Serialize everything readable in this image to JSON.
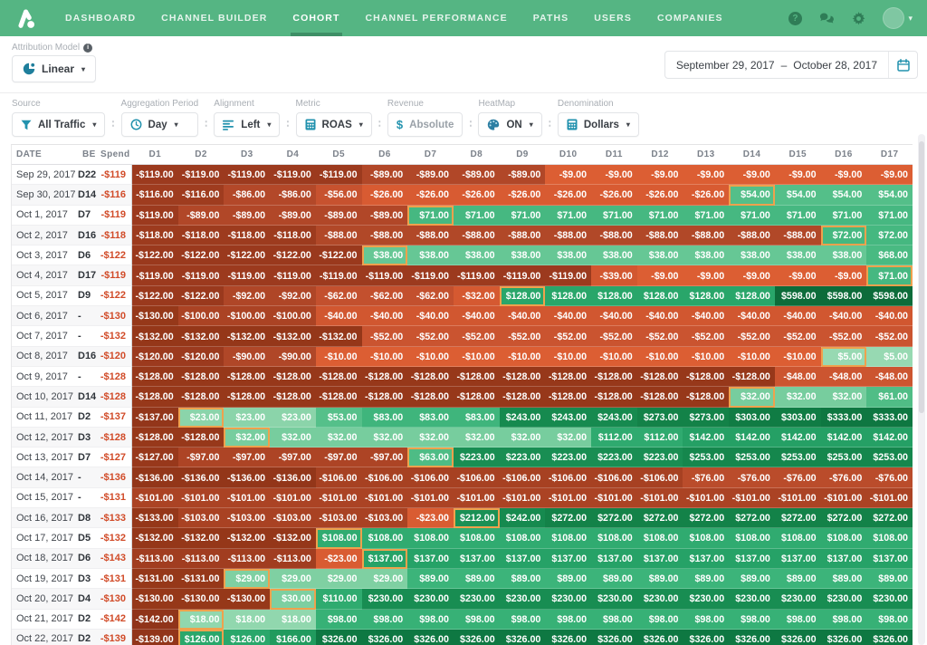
{
  "nav": {
    "items": [
      {
        "label": "DASHBOARD",
        "active": false
      },
      {
        "label": "CHANNEL BUILDER",
        "active": false
      },
      {
        "label": "COHORT",
        "active": true
      },
      {
        "label": "CHANNEL PERFORMANCE",
        "active": false
      },
      {
        "label": "PATHS",
        "active": false
      },
      {
        "label": "USERS",
        "active": false
      },
      {
        "label": "COMPANIES",
        "active": false
      }
    ],
    "right_icons": [
      "help-icon",
      "chat-bubbles-icon",
      "gear-icon",
      "avatar",
      "chevron-down-icon"
    ]
  },
  "attribution": {
    "label": "Attribution Model",
    "model": "Linear"
  },
  "date_range": {
    "start": "September 29, 2017",
    "separator": "–",
    "end": "October 28, 2017"
  },
  "filters": [
    {
      "label": "Source",
      "value": "All Traffic",
      "icon": "funnel-icon",
      "caret": true,
      "muted": false
    },
    {
      "label": "Aggregation Period",
      "value": "Day",
      "icon": "clock-icon",
      "caret": true,
      "muted": false
    },
    {
      "label": "Alignment",
      "value": "Left",
      "icon": "align-left-icon",
      "caret": true,
      "muted": false
    },
    {
      "label": "Metric",
      "value": "ROAS",
      "icon": "calculator-icon",
      "caret": true,
      "muted": false
    },
    {
      "label": "Revenue",
      "value": "Absolute",
      "icon": "dollar-icon",
      "caret": false,
      "muted": true
    },
    {
      "label": "HeatMap",
      "value": "ON",
      "icon": "palette-icon",
      "caret": true,
      "muted": false
    },
    {
      "label": "Denomination",
      "value": "Dollars",
      "icon": "calculator-icon",
      "caret": true,
      "muted": false
    }
  ],
  "table": {
    "fixed_headers": [
      "DATE",
      "BE",
      "Spend"
    ],
    "day_headers": [
      "D1",
      "D2",
      "D3",
      "D4",
      "D5",
      "D6",
      "D7",
      "D8",
      "D9",
      "D10",
      "D11",
      "D12",
      "D13",
      "D14",
      "D15",
      "D16",
      "D17"
    ],
    "rows": [
      {
        "date": "Sep 29, 2017",
        "be": "D22",
        "spend": -119,
        "values": [
          -119,
          -119,
          -119,
          -119,
          -119,
          -89,
          -89,
          -89,
          -89,
          -9,
          -9,
          -9,
          -9,
          -9,
          -9,
          -9,
          -9
        ]
      },
      {
        "date": "Sep 30, 2017",
        "be": "D14",
        "spend": -116,
        "values": [
          -116,
          -116,
          -86,
          -86,
          -56,
          -26,
          -26,
          -26,
          -26,
          -26,
          -26,
          -26,
          -26,
          54,
          54,
          54,
          54
        ]
      },
      {
        "date": "Oct 1, 2017",
        "be": "D7",
        "spend": -119,
        "values": [
          -119,
          -89,
          -89,
          -89,
          -89,
          -89,
          71,
          71,
          71,
          71,
          71,
          71,
          71,
          71,
          71,
          71,
          71
        ]
      },
      {
        "date": "Oct 2, 2017",
        "be": "D16",
        "spend": -118,
        "values": [
          -118,
          -118,
          -118,
          -118,
          -88,
          -88,
          -88,
          -88,
          -88,
          -88,
          -88,
          -88,
          -88,
          -88,
          -88,
          72,
          72
        ]
      },
      {
        "date": "Oct 3, 2017",
        "be": "D6",
        "spend": -122,
        "values": [
          -122,
          -122,
          -122,
          -122,
          -122,
          38,
          38,
          38,
          38,
          38,
          38,
          38,
          38,
          38,
          38,
          38,
          68
        ]
      },
      {
        "date": "Oct 4, 2017",
        "be": "D17",
        "spend": -119,
        "values": [
          -119,
          -119,
          -119,
          -119,
          -119,
          -119,
          -119,
          -119,
          -119,
          -119,
          -39,
          -9,
          -9,
          -9,
          -9,
          -9,
          71
        ]
      },
      {
        "date": "Oct 5, 2017",
        "be": "D9",
        "spend": -122,
        "values": [
          -122,
          -122,
          -92,
          -92,
          -62,
          -62,
          -62,
          -32,
          128,
          128,
          128,
          128,
          128,
          128,
          598,
          598,
          598
        ]
      },
      {
        "date": "Oct 6, 2017",
        "be": "-",
        "spend": -130,
        "values": [
          -130,
          -100,
          -100,
          -100,
          -40,
          -40,
          -40,
          -40,
          -40,
          -40,
          -40,
          -40,
          -40,
          -40,
          -40,
          -40,
          -40
        ]
      },
      {
        "date": "Oct 7, 2017",
        "be": "-",
        "spend": -132,
        "values": [
          -132,
          -132,
          -132,
          -132,
          -132,
          -52,
          -52,
          -52,
          -52,
          -52,
          -52,
          -52,
          -52,
          -52,
          -52,
          -52,
          -52
        ]
      },
      {
        "date": "Oct 8, 2017",
        "be": "D16",
        "spend": -120,
        "values": [
          -120,
          -120,
          -90,
          -90,
          -10,
          -10,
          -10,
          -10,
          -10,
          -10,
          -10,
          -10,
          -10,
          -10,
          -10,
          5,
          5
        ]
      },
      {
        "date": "Oct 9, 2017",
        "be": "-",
        "spend": -128,
        "values": [
          -128,
          -128,
          -128,
          -128,
          -128,
          -128,
          -128,
          -128,
          -128,
          -128,
          -128,
          -128,
          -128,
          -128,
          -48,
          -48,
          -48
        ]
      },
      {
        "date": "Oct 10, 2017",
        "be": "D14",
        "spend": -128,
        "values": [
          -128,
          -128,
          -128,
          -128,
          -128,
          -128,
          -128,
          -128,
          -128,
          -128,
          -128,
          -128,
          -128,
          32,
          32,
          32,
          61
        ]
      },
      {
        "date": "Oct 11, 2017",
        "be": "D2",
        "spend": -137,
        "values": [
          -137,
          23,
          23,
          23,
          53,
          83,
          83,
          83,
          243,
          243,
          243,
          273,
          273,
          303,
          303,
          333,
          333
        ]
      },
      {
        "date": "Oct 12, 2017",
        "be": "D3",
        "spend": -128,
        "values": [
          -128,
          -128,
          32,
          32,
          32,
          32,
          32,
          32,
          32,
          32,
          112,
          112,
          142,
          142,
          142,
          142,
          142
        ]
      },
      {
        "date": "Oct 13, 2017",
        "be": "D7",
        "spend": -127,
        "values": [
          -127,
          -97,
          -97,
          -97,
          -97,
          -97,
          63,
          223,
          223,
          223,
          223,
          223,
          253,
          253,
          253,
          253,
          253
        ]
      },
      {
        "date": "Oct 14, 2017",
        "be": "-",
        "spend": -136,
        "values": [
          -136,
          -136,
          -136,
          -136,
          -106,
          -106,
          -106,
          -106,
          -106,
          -106,
          -106,
          -106,
          -76,
          -76,
          -76,
          -76,
          -76
        ]
      },
      {
        "date": "Oct 15, 2017",
        "be": "-",
        "spend": -131,
        "values": [
          -101,
          -101,
          -101,
          -101,
          -101,
          -101,
          -101,
          -101,
          -101,
          -101,
          -101,
          -101,
          -101,
          -101,
          -101,
          -101,
          -101
        ]
      },
      {
        "date": "Oct 16, 2017",
        "be": "D8",
        "spend": -133,
        "values": [
          -133,
          -103,
          -103,
          -103,
          -103,
          -103,
          -23,
          212,
          242,
          272,
          272,
          272,
          272,
          272,
          272,
          272,
          272
        ]
      },
      {
        "date": "Oct 17, 2017",
        "be": "D5",
        "spend": -132,
        "values": [
          -132,
          -132,
          -132,
          -132,
          108,
          108,
          108,
          108,
          108,
          108,
          108,
          108,
          108,
          108,
          108,
          108,
          108
        ]
      },
      {
        "date": "Oct 18, 2017",
        "be": "D6",
        "spend": -143,
        "values": [
          -113,
          -113,
          -113,
          -113,
          -23,
          137,
          137,
          137,
          137,
          137,
          137,
          137,
          137,
          137,
          137,
          137,
          137
        ]
      },
      {
        "date": "Oct 19, 2017",
        "be": "D3",
        "spend": -131,
        "values": [
          -131,
          -131,
          29,
          29,
          29,
          29,
          89,
          89,
          89,
          89,
          89,
          89,
          89,
          89,
          89,
          89,
          89
        ]
      },
      {
        "date": "Oct 20, 2017",
        "be": "D4",
        "spend": -130,
        "values": [
          -130,
          -130,
          -130,
          30,
          110,
          230,
          230,
          230,
          230,
          230,
          230,
          230,
          230,
          230,
          230,
          230,
          230
        ]
      },
      {
        "date": "Oct 21, 2017",
        "be": "D2",
        "spend": -142,
        "values": [
          -142,
          18,
          18,
          18,
          98,
          98,
          98,
          98,
          98,
          98,
          98,
          98,
          98,
          98,
          98,
          98,
          98
        ]
      },
      {
        "date": "Oct 22, 2017",
        "be": "D2",
        "spend": -139,
        "values": [
          -139,
          126,
          126,
          166,
          326,
          326,
          326,
          326,
          326,
          326,
          326,
          326,
          326,
          326,
          326,
          326,
          326
        ]
      }
    ]
  },
  "colors": {
    "nav_green": "#55b583",
    "active_tab_underline": "#3e8f66",
    "accent_teal": "#2292ae",
    "pie_teal": "#1f7f9c",
    "spend_red": "#d14b28",
    "breakeven_border": "#efa14d",
    "negative_bright": "#dc5e33",
    "negative_dark": "#90341a",
    "positive_light": "#97d9b2",
    "positive_dark": "#0d6c3a"
  }
}
